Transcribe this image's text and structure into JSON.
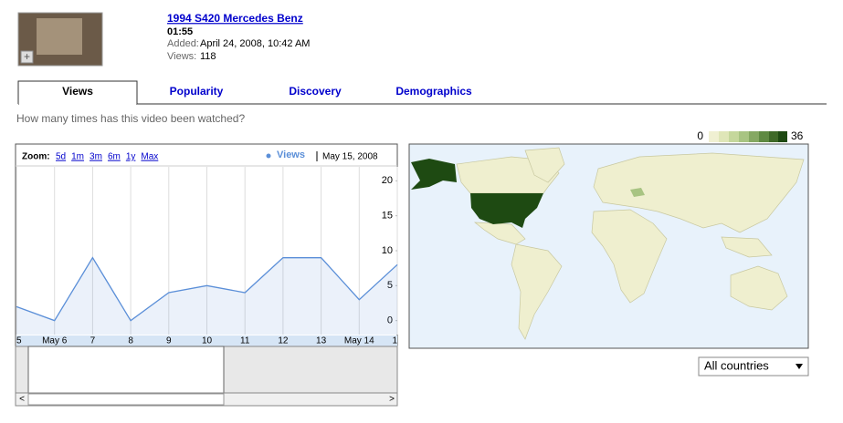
{
  "video": {
    "title": "1994 S420 Mercedes Benz",
    "duration": "01:55",
    "added_label": "Added:",
    "added_value": "April 24, 2008, 10:42 AM",
    "views_label": "Views:",
    "views_value": "118"
  },
  "tabs": [
    "Views",
    "Popularity",
    "Discovery",
    "Demographics"
  ],
  "question": "How many times has this video been watched?",
  "map_legend": {
    "min": 0,
    "max": 36
  },
  "zoom": {
    "label": "Zoom:",
    "options": [
      "5d",
      "1m",
      "3m",
      "6m",
      "1y",
      "Max"
    ]
  },
  "country_filter": "All countries",
  "chart_data": {
    "type": "line",
    "date": "May 15, 2008",
    "categories": [
      "5",
      "May 6",
      "7",
      "8",
      "9",
      "10",
      "11",
      "12",
      "13",
      "May 14",
      "1"
    ],
    "series": [
      {
        "name": "Views",
        "color": "#5b8fd8",
        "values": [
          2,
          0,
          9,
          0,
          4,
          5,
          4,
          9,
          9,
          3,
          8
        ]
      }
    ],
    "ylim": [
      -2,
      22
    ],
    "yticks": [
      0,
      5,
      10,
      15,
      20
    ],
    "grid": true
  }
}
